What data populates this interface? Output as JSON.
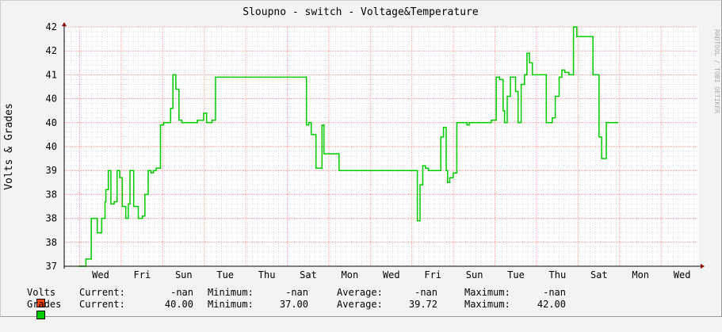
{
  "chart_data": {
    "type": "line",
    "title": "Sloupno - switch - Voltage&Temperature",
    "ylabel": "Volts & Grades",
    "watermark": "RRDTOOL / TOBI OETIKER",
    "ylim": [
      37,
      42
    ],
    "y_ticks": [
      {
        "value": 37,
        "label": "37"
      },
      {
        "value": 37.5,
        "label": "38"
      },
      {
        "value": 38,
        "label": "38"
      },
      {
        "value": 38.5,
        "label": "38"
      },
      {
        "value": 39,
        "label": "39"
      },
      {
        "value": 39.5,
        "label": "40"
      },
      {
        "value": 40,
        "label": "40"
      },
      {
        "value": 40.5,
        "label": "40"
      },
      {
        "value": 41,
        "label": "41"
      },
      {
        "value": 41.5,
        "label": "42"
      },
      {
        "value": 42,
        "label": "42"
      }
    ],
    "x_ticks": [
      "Wed",
      "Fri",
      "Sun",
      "Tue",
      "Thu",
      "Sat",
      "Mon",
      "Wed",
      "Fri",
      "Sun",
      "Tue",
      "Thu",
      "Sat",
      "Mon",
      "Wed"
    ],
    "xlim_days": [
      0,
      26.2
    ],
    "colors": {
      "grades": "#00cc00",
      "volts": "#ff4400",
      "major_grid": "#ff9999",
      "minor_grid": "#dddddd",
      "axis": "#000000"
    },
    "series": [
      {
        "name": "Grades",
        "color": "#00cc00",
        "x_days": [
          0,
          0.36,
          0.62,
          0.91,
          1.12,
          1.18,
          1.28,
          1.32,
          1.44,
          1.56,
          1.72,
          1.86,
          1.99,
          2.11,
          2.28,
          2.4,
          2.48,
          2.66,
          2.88,
          3.08,
          3.2,
          3.36,
          3.49,
          3.61,
          3.74,
          3.95,
          4.1,
          4.29,
          4.44,
          4.55,
          4.69,
          4.84,
          4.98,
          5.2,
          5.58,
          5.63,
          5.73,
          6.03,
          6.17,
          6.24,
          6.43,
          6.6,
          10.98,
          11.09,
          11.21,
          11.44,
          11.62,
          11.73,
          11.82,
          12.55,
          12.64,
          12.79,
          12.98,
          13.07,
          13.15,
          13.38,
          16.32,
          16.45,
          16.58,
          16.71,
          16.85,
          17.02,
          17.28,
          17.45,
          17.58,
          17.71,
          17.78,
          17.88,
          18.05,
          18.22,
          18.36,
          18.62,
          18.71,
          18.82,
          19.38,
          19.62,
          19.8,
          19.88,
          20.12,
          20.28,
          20.45,
          20.52,
          20.65,
          20.8,
          21.05,
          21.17,
          21.32,
          21.48,
          21.6,
          21.72,
          21.86,
          22.34,
          22.53,
          22.62,
          22.82,
          22.96,
          23.15,
          23.28,
          23.42,
          23.62,
          23.84,
          24.0,
          24.78,
          24.88,
          25.07,
          25.2,
          25.42,
          26.0
        ],
        "y": [
          37.0,
          37.15,
          38.0,
          37.7,
          38.0,
          38.0,
          38.35,
          38.6,
          39.0,
          38.3,
          38.35,
          39.0,
          38.85,
          38.25,
          38.0,
          38.3,
          39.0,
          38.25,
          38.0,
          38.05,
          38.5,
          39.0,
          38.95,
          39.0,
          39.05,
          39.95,
          40.0,
          40.0,
          40.3,
          41.0,
          40.7,
          40.05,
          40.0,
          40.0,
          40.0,
          40.0,
          40.05,
          40.2,
          40.0,
          40.0,
          40.05,
          40.95,
          39.95,
          40.0,
          39.75,
          39.05,
          39.05,
          39.95,
          39.35,
          39.0,
          39.0,
          39.0,
          39.0,
          39.0,
          39.0,
          39.0,
          37.95,
          38.7,
          39.1,
          39.05,
          39.0,
          39.0,
          39.0,
          39.7,
          39.9,
          39.0,
          38.75,
          38.85,
          38.95,
          40.0,
          40.0,
          40.0,
          39.95,
          40.0,
          40.0,
          40.0,
          40.0,
          40.05,
          40.95,
          40.9,
          40.25,
          40.0,
          40.55,
          40.95,
          40.65,
          40.0,
          40.8,
          41.0,
          41.45,
          41.25,
          41.0,
          41.0,
          40.0,
          40.0,
          40.1,
          40.55,
          40.95,
          41.1,
          41.05,
          41.0,
          42.0,
          41.8,
          41.0,
          41.0,
          39.7,
          39.25,
          40.0,
          40.0
        ]
      },
      {
        "name": "Volts",
        "color": "#ff4400",
        "values": []
      }
    ],
    "legend": [
      {
        "name": "Volts",
        "color": "#ff4400",
        "current_label": "Current:",
        "current": "-nan",
        "min_label": "Minimum:",
        "min": "-nan",
        "avg_label": "Average:",
        "avg": "-nan",
        "max_label": "Maximum:",
        "max": "-nan"
      },
      {
        "name": "Grades",
        "color": "#00cc00",
        "current_label": "Current:",
        "current": "40.00",
        "min_label": "Minimum:",
        "min": "37.00",
        "avg_label": "Average:",
        "avg": "39.72",
        "max_label": "Maximum:",
        "max": "42.00"
      }
    ]
  }
}
